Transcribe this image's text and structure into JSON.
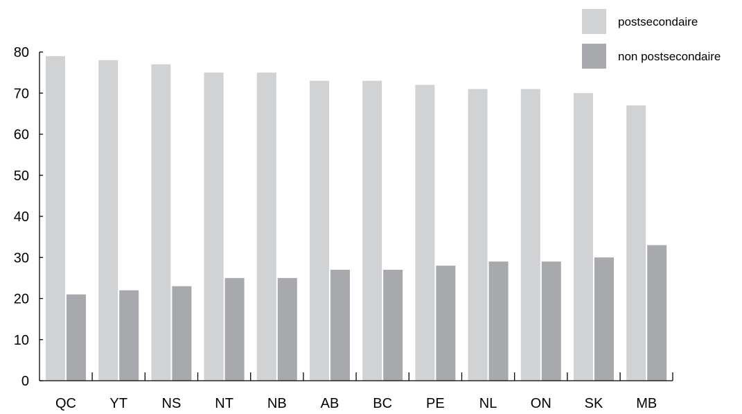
{
  "chart_data": {
    "type": "bar",
    "categories": [
      "QC",
      "YT",
      "NS",
      "NT",
      "NB",
      "AB",
      "BC",
      "PE",
      "NL",
      "ON",
      "SK",
      "MB"
    ],
    "series": [
      {
        "name": "postsecondaire",
        "color": "#d1d2d4",
        "values": [
          79,
          78,
          77,
          75,
          75,
          73,
          73,
          72,
          71,
          71,
          70,
          67
        ]
      },
      {
        "name": "non postsecondaire",
        "color": "#a7a9ac",
        "values": [
          21,
          22,
          23,
          25,
          25,
          27,
          27,
          28,
          29,
          29,
          30,
          33
        ]
      }
    ],
    "ylim": [
      0,
      80
    ],
    "yticks": [
      0,
      10,
      20,
      30,
      40,
      50,
      60,
      70,
      80
    ],
    "xlabel": "",
    "ylabel": "",
    "title": "",
    "grid": false,
    "legend": "top-right"
  }
}
